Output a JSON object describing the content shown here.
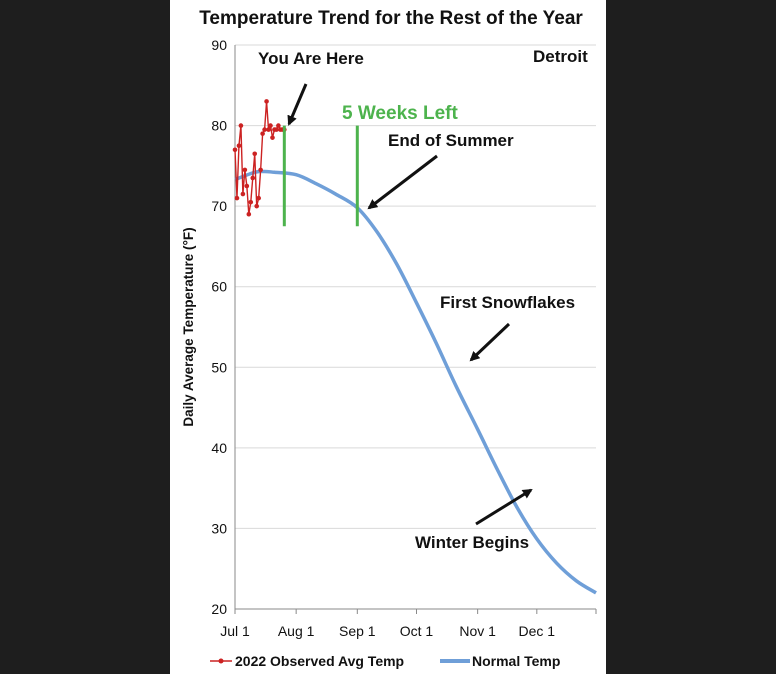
{
  "chart_data": {
    "type": "line",
    "title": "Temperature Trend for the Rest of the Year",
    "ylabel": "Daily Average Temperature (°F)",
    "xlabel": "",
    "ylim": [
      20,
      90
    ],
    "yticks": [
      20,
      30,
      40,
      50,
      60,
      70,
      80,
      90
    ],
    "xlim_day_of_year": [
      182,
      365
    ],
    "xticks": [
      {
        "label": "Jul 1",
        "day": 182
      },
      {
        "label": "Aug 1",
        "day": 213
      },
      {
        "label": "Sep 1",
        "day": 244
      },
      {
        "label": "Oct 1",
        "day": 274
      },
      {
        "label": "Nov 1",
        "day": 305
      },
      {
        "label": "Dec 1",
        "day": 335
      }
    ],
    "grid": "horizontal",
    "legend_position": "bottom",
    "series": [
      {
        "name": "2022 Observed Avg Temp",
        "color": "#cc2222",
        "marker": "circle",
        "x_day_of_year": [
          182,
          183,
          184,
          185,
          186,
          187,
          188,
          189,
          190,
          191,
          192,
          193,
          194,
          195,
          196,
          197,
          198,
          199,
          200,
          201,
          202,
          203,
          204,
          205,
          206,
          207
        ],
        "y": [
          77,
          71,
          77.5,
          80,
          71.5,
          74.5,
          72.5,
          69,
          70.5,
          73.5,
          76.5,
          70,
          71,
          74.5,
          79,
          79.5,
          83,
          79.5,
          80,
          78.5,
          79.5,
          79.5,
          80,
          79.5,
          79.5,
          79.5
        ]
      },
      {
        "name": "Normal Temp",
        "color": "#6f9fd8",
        "x_day_of_year": [
          182,
          192,
          197,
          202,
          213,
          223,
          233,
          244,
          254,
          264,
          274,
          284,
          294,
          305,
          315,
          325,
          335,
          345,
          355,
          365
        ],
        "y": [
          73.3,
          74.2,
          74.3,
          74.2,
          73.9,
          72.8,
          71.5,
          69.8,
          66.8,
          62.8,
          58.0,
          53.0,
          47.7,
          42.3,
          37.3,
          32.6,
          28.7,
          25.7,
          23.5,
          22.0
        ]
      }
    ],
    "vertical_markers": [
      {
        "day_of_year": 207,
        "ymin": 67.5,
        "ymax": 80,
        "color": "#4db34d"
      },
      {
        "day_of_year": 244,
        "ymin": 67.5,
        "ymax": 80,
        "color": "#4db34d"
      }
    ],
    "annotations": [
      {
        "text": "Detroit"
      },
      {
        "text": "You Are Here"
      },
      {
        "text": "5 Weeks Left",
        "color": "#4db34d"
      },
      {
        "text": "End of Summer"
      },
      {
        "text": "First Snowflakes"
      },
      {
        "text": "Winter Begins"
      }
    ]
  }
}
